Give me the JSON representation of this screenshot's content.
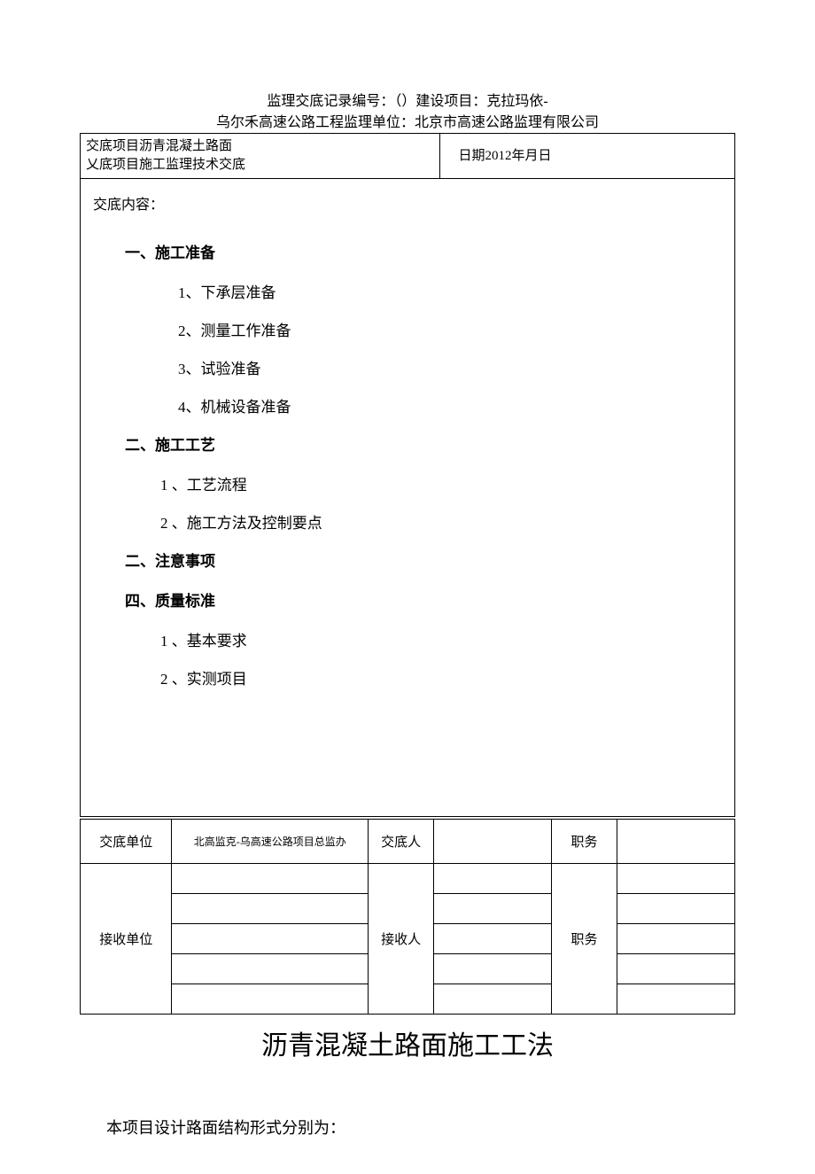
{
  "header": {
    "line1": "监理交底记录编号：（）建设项目：克拉玛依-",
    "line2": "乌尔禾高速公路工程监理单位：北京市高速公路监理有限公司"
  },
  "topTable": {
    "leftCell": {
      "line1": "交底项目沥青混凝土路面",
      "line2": "乂底项目施工监理技术交底"
    },
    "rightCell": "日期2012年月日"
  },
  "content": {
    "title": "交底内容：",
    "sections": [
      {
        "heading": "一、施工准备",
        "items": [
          "1、下承层准备",
          "2、测量工作准备",
          "3、试验准备",
          "4、机械设备准备"
        ]
      },
      {
        "heading": "二、施工工艺",
        "items": [
          "1 、工艺流程",
          "2 、施工方法及控制要点"
        ]
      },
      {
        "heading": "二、注意事项",
        "items": []
      },
      {
        "heading": "四、质量标准",
        "items": [
          "1 、基本要求",
          "2 、实测项目"
        ]
      }
    ]
  },
  "footerTable": {
    "row1": {
      "c1": "交底单位",
      "c2": "北高监克-乌高速公路项目总监办",
      "c3": "交底人",
      "c4": "",
      "c5": "职务",
      "c6": ""
    },
    "row2": {
      "c1": "接收单位",
      "c3": "接收人",
      "c5": "职务"
    }
  },
  "bigTitle": "沥青混凝土路面施工工法",
  "bodyText": "本项目设计路面结构形式分别为：",
  "style": {
    "background": "#ffffff",
    "text_color": "#000000",
    "border_color": "#000000",
    "header_fontsize": 16,
    "section_fontsize": 17,
    "table_fontsize": 15,
    "bigtitle_fontsize": 30,
    "body_fontsize": 18
  }
}
